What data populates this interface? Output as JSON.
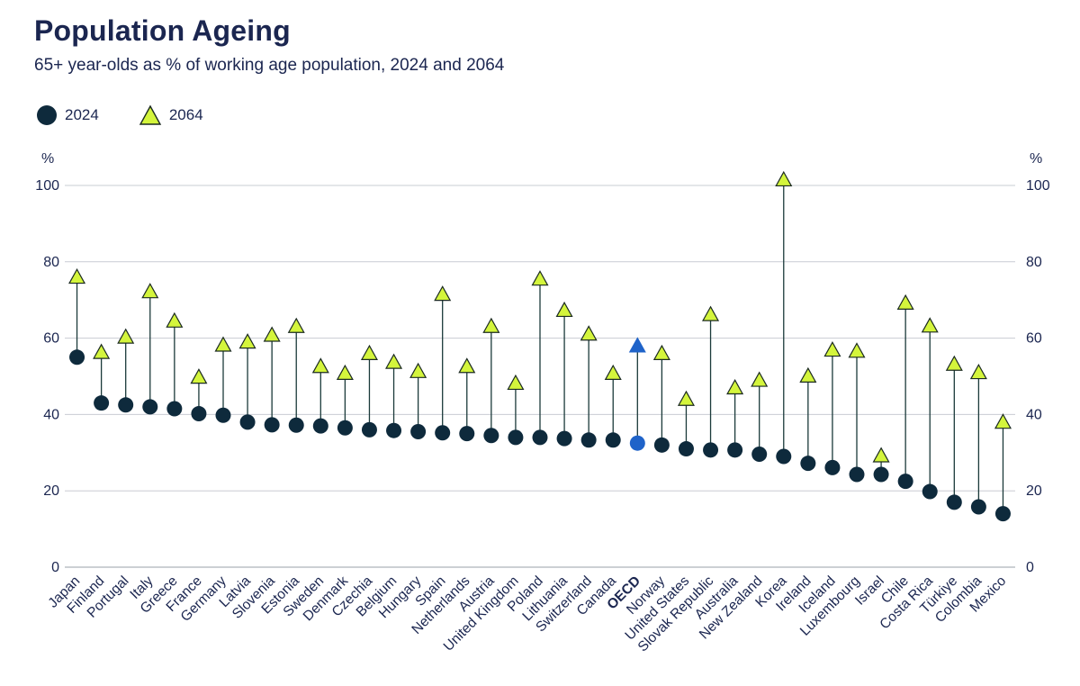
{
  "title": "Population Ageing",
  "subtitle": "65+ year-olds as % of working age population, 2024 and 2064",
  "legend": [
    {
      "label": "2024",
      "shape": "circle",
      "color": "#0e2a3c"
    },
    {
      "label": "2064",
      "shape": "triangle",
      "color": "#d4f53c"
    }
  ],
  "colors": {
    "dot2024": "#0e2a3c",
    "tri2064": "#d4f53c",
    "triStroke": "#1b2a20",
    "oecd": "#1f63c9",
    "stem": "#1b3a3a",
    "grid": "#c9ccd3",
    "text": "#1b2650"
  },
  "chart_data": {
    "type": "scatter",
    "title": "Population Ageing",
    "subtitle": "65+ year-olds as % of working age population, 2024 and 2064",
    "ylabel": "%",
    "ylabel_right": "%",
    "ylim": [
      0,
      100
    ],
    "yticks": [
      0,
      20,
      40,
      60,
      80,
      100
    ],
    "highlight": "OECD",
    "categories": [
      "Japan",
      "Finland",
      "Portugal",
      "Italy",
      "Greece",
      "France",
      "Germany",
      "Latvia",
      "Slovenia",
      "Estonia",
      "Sweden",
      "Denmark",
      "Czechia",
      "Belgium",
      "Hungary",
      "Spain",
      "Netherlands",
      "Austria",
      "United Kingdom",
      "Poland",
      "Lithuania",
      "Switzerland",
      "Canada",
      "OECD",
      "Norway",
      "United States",
      "Slovak Republic",
      "Australia",
      "New Zealand",
      "Korea",
      "Ireland",
      "Iceland",
      "Luxembourg",
      "Israel",
      "Chile",
      "Costa Rica",
      "Türkiye",
      "Colombia",
      "Mexico"
    ],
    "series": [
      {
        "name": "2024",
        "values": [
          55.0,
          43.0,
          42.5,
          42.0,
          41.5,
          40.2,
          39.8,
          38.0,
          37.3,
          37.2,
          37.0,
          36.5,
          36.0,
          35.8,
          35.5,
          35.2,
          35.0,
          34.5,
          34.0,
          34.0,
          33.7,
          33.3,
          33.3,
          32.5,
          32.0,
          31.0,
          30.7,
          30.7,
          29.6,
          29.0,
          27.2,
          26.1,
          24.3,
          24.3,
          22.5,
          19.8,
          17.0,
          15.8,
          14.0
        ]
      },
      {
        "name": "2064",
        "values": [
          76.0,
          56.3,
          60.3,
          72.2,
          64.5,
          49.8,
          58.2,
          59.0,
          60.8,
          63.1,
          52.6,
          50.8,
          56.0,
          53.7,
          51.3,
          71.5,
          52.6,
          63.1,
          48.2,
          75.5,
          67.3,
          61.1,
          50.8,
          58.0,
          56.0,
          44.0,
          66.2,
          47.0,
          49.0,
          101.5,
          50.1,
          56.9,
          56.6,
          29.2,
          69.2,
          63.2,
          53.2,
          51.0,
          38.0
        ]
      }
    ]
  }
}
